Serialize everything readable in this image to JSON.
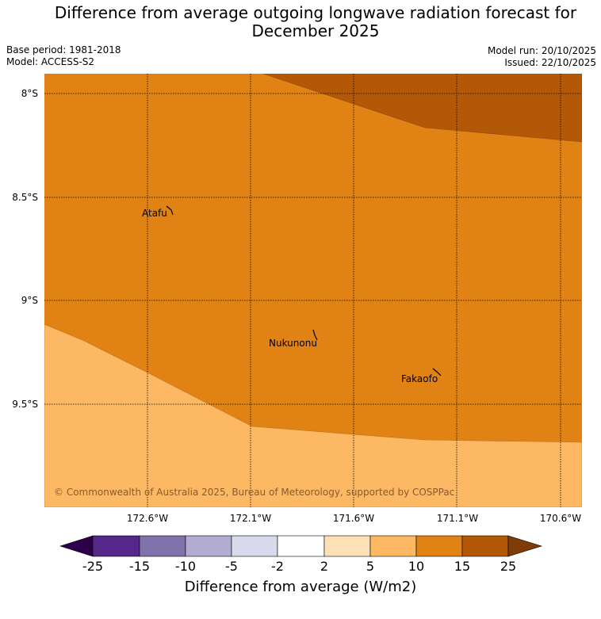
{
  "title": {
    "line1": "Difference from average outgoing longwave radiation forecast for",
    "line2": "December 2025"
  },
  "meta": {
    "base_period": "Base period: 1981-2018",
    "model": "Model: ACCESS-S2",
    "model_run": "Model run: 20/10/2025",
    "issued": "Issued: 22/10/2025"
  },
  "map": {
    "lat_labels": [
      "8°S",
      "8.5°S",
      "9°S",
      "9.5°S"
    ],
    "lon_labels": [
      "172.6°W",
      "172.1°W",
      "171.6°W",
      "171.1°W",
      "170.6°W"
    ],
    "places": [
      "Atafu",
      "Nukunonu",
      "Fakaofo"
    ],
    "copyright": "© Commonwealth of Australia 2025, Bureau of Meteorology, supported by COSPPac",
    "colors": {
      "band_10_15": "#e08214",
      "band_5_10": "#fdb863",
      "band_15_25": "#b35806",
      "grid": "#000000"
    }
  },
  "colorbar": {
    "ticks": [
      "-25",
      "-15",
      "-10",
      "-5",
      "-2",
      "2",
      "5",
      "10",
      "15",
      "25"
    ],
    "colors": [
      "#2d004b",
      "#542788",
      "#8073ac",
      "#b2abd2",
      "#d8daeb",
      "#ffffff",
      "#fee0b6",
      "#fdb863",
      "#e08214",
      "#b35806",
      "#7f3b08"
    ],
    "label": "Difference from average (W/m2)"
  }
}
